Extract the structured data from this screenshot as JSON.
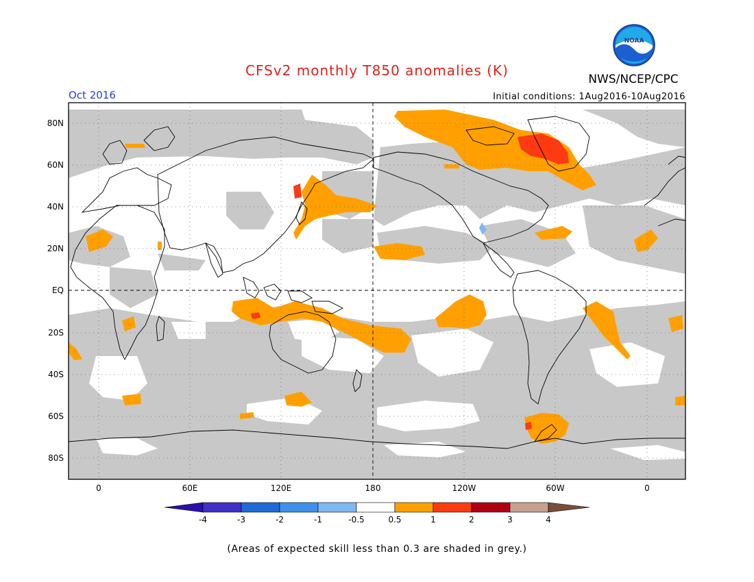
{
  "title": "CFSv2 monthly T850 anomalies (K)",
  "agency": "NWS/NCEP/CPC",
  "logo_text": "NOAA",
  "month_label": "Oct 2016",
  "initial_conditions": "Initial conditions: 1Aug2016-10Aug2016",
  "footnote": "(Areas of expected skill less than 0.3 are shaded in grey.)",
  "map": {
    "lat_ticks": [
      "80N",
      "60N",
      "40N",
      "20N",
      "EQ",
      "20S",
      "40S",
      "60S",
      "80S"
    ],
    "lon_ticks": [
      "0",
      "60E",
      "120E",
      "180",
      "120W",
      "60W",
      "0"
    ],
    "skill_mask_color": "#c8c8c8",
    "ocean_land_background": "#ffffff"
  },
  "colorbar": {
    "labels": [
      "-4",
      "-3",
      "-2",
      "-1",
      "-0.5",
      "0.5",
      "1",
      "2",
      "3",
      "4"
    ],
    "colors": [
      "#2a10a8",
      "#4030c8",
      "#1f6ad8",
      "#3e91ea",
      "#7fb8f0",
      "#ffffff",
      "#ffa000",
      "#ff3a10",
      "#b00010",
      "#c8a090",
      "#7a4e3a"
    ]
  }
}
